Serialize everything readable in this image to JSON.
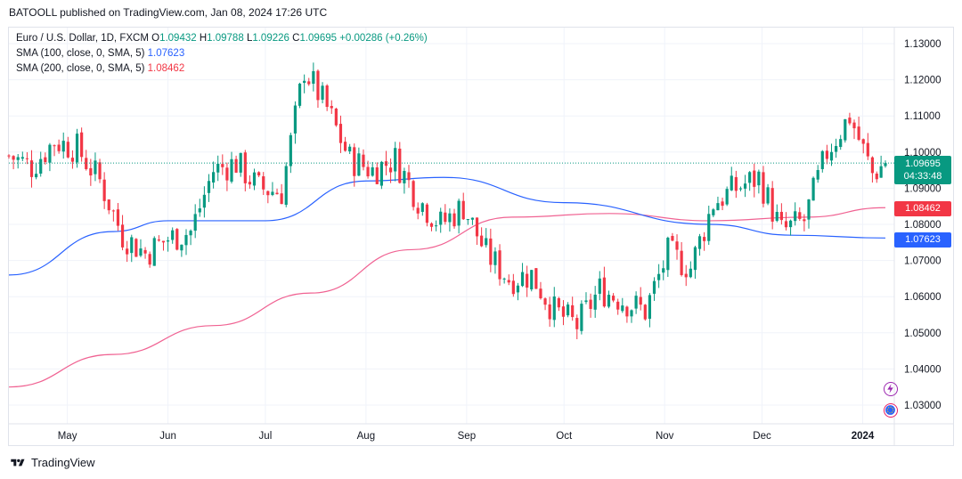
{
  "publisher_line": "BATOOLL published on TradingView.com, Jan 08, 2024 17:26 UTC",
  "legend": {
    "symbol": "Euro / U.S. Dollar, 1D, FXCM",
    "ohlc_open_label": "O",
    "open": "1.09432",
    "ohlc_high_label": "H",
    "high": "1.09788",
    "ohlc_low_label": "L",
    "low": "1.09226",
    "ohlc_close_label": "C",
    "close": "1.09695",
    "change": "+0.00286 (+0.26%)",
    "sma100_label": "SMA (100, close, 0, SMA, 5)",
    "sma100_value": "1.07623",
    "sma200_label": "SMA (200, close, 0, SMA, 5)",
    "sma200_value": "1.08462"
  },
  "price_badges": {
    "last": "1.09695",
    "countdown": "04:33:48",
    "sma200": "1.08462",
    "sma100": "1.07623"
  },
  "footer": {
    "brand": "TradingView"
  },
  "icons": {
    "flash": "flash-icon",
    "flag": "eu-flag-icon"
  },
  "colors": {
    "up": "#089981",
    "down": "#f23645",
    "sma100": "#2962ff",
    "sma200": "#f06292",
    "grid": "#f0f3fa"
  },
  "chart_data": {
    "type": "candlestick",
    "title": "Euro / U.S. Dollar, 1D, FXCM",
    "x_ticks": [
      "May",
      "Jun",
      "Jul",
      "Aug",
      "Sep",
      "Oct",
      "Nov",
      "Dec",
      "2024"
    ],
    "y_ticks": [
      "1.03000",
      "1.04000",
      "1.05000",
      "1.06000",
      "1.07000",
      "1.08000",
      "1.09000",
      "1.10000",
      "1.11000",
      "1.12000",
      "1.13000"
    ],
    "ylim": [
      1.025,
      1.135
    ],
    "last_price": 1.09695,
    "approx_close_path": [
      [
        "2023-04-13",
        1.099
      ],
      [
        "2023-04-20",
        1.096
      ],
      [
        "2023-04-27",
        1.103
      ],
      [
        "2023-05-04",
        1.101
      ],
      [
        "2023-05-11",
        1.092
      ],
      [
        "2023-05-18",
        1.077
      ],
      [
        "2023-05-25",
        1.072
      ],
      [
        "2023-06-01",
        1.076
      ],
      [
        "2023-06-08",
        1.078
      ],
      [
        "2023-06-15",
        1.095
      ],
      [
        "2023-06-22",
        1.097
      ],
      [
        "2023-06-29",
        1.09
      ],
      [
        "2023-07-06",
        1.089
      ],
      [
        "2023-07-13",
        1.123
      ],
      [
        "2023-07-20",
        1.112
      ],
      [
        "2023-07-27",
        1.098
      ],
      [
        "2023-08-03",
        1.095
      ],
      [
        "2023-08-10",
        1.098
      ],
      [
        "2023-08-17",
        1.087
      ],
      [
        "2023-08-24",
        1.08
      ],
      [
        "2023-08-31",
        1.085
      ],
      [
        "2023-09-07",
        1.072
      ],
      [
        "2023-09-14",
        1.065
      ],
      [
        "2023-09-21",
        1.066
      ],
      [
        "2023-09-28",
        1.056
      ],
      [
        "2023-10-05",
        1.052
      ],
      [
        "2023-10-12",
        1.062
      ],
      [
        "2023-10-19",
        1.059
      ],
      [
        "2023-10-26",
        1.056
      ],
      [
        "2023-11-02",
        1.072
      ],
      [
        "2023-11-09",
        1.068
      ],
      [
        "2023-11-16",
        1.086
      ],
      [
        "2023-11-23",
        1.09
      ],
      [
        "2023-11-30",
        1.093
      ],
      [
        "2023-12-07",
        1.078
      ],
      [
        "2023-12-14",
        1.081
      ],
      [
        "2023-12-21",
        1.1
      ],
      [
        "2023-12-28",
        1.11
      ],
      [
        "2024-01-04",
        1.094
      ],
      [
        "2024-01-08",
        1.09695
      ]
    ],
    "series": [
      {
        "name": "SMA (100, close, 0, SMA, 5)",
        "last_value": 1.07623,
        "approx_path": [
          [
            "2023-04-13",
            1.066
          ],
          [
            "2023-05-15",
            1.078
          ],
          [
            "2023-06-01",
            1.081
          ],
          [
            "2023-07-01",
            1.081
          ],
          [
            "2023-08-01",
            1.092
          ],
          [
            "2023-08-25",
            1.093
          ],
          [
            "2023-10-01",
            1.086
          ],
          [
            "2023-11-15",
            1.08
          ],
          [
            "2023-12-10",
            1.077
          ],
          [
            "2024-01-08",
            1.07623
          ]
        ]
      },
      {
        "name": "SMA (200, close, 0, SMA, 5)",
        "last_value": 1.08462,
        "approx_path": [
          [
            "2023-04-13",
            1.035
          ],
          [
            "2023-05-15",
            1.044
          ],
          [
            "2023-06-15",
            1.052
          ],
          [
            "2023-07-15",
            1.061
          ],
          [
            "2023-08-15",
            1.073
          ],
          [
            "2023-09-15",
            1.082
          ],
          [
            "2023-10-15",
            1.083
          ],
          [
            "2023-11-15",
            1.081
          ],
          [
            "2023-12-15",
            1.082
          ],
          [
            "2024-01-08",
            1.08462
          ]
        ]
      }
    ]
  }
}
